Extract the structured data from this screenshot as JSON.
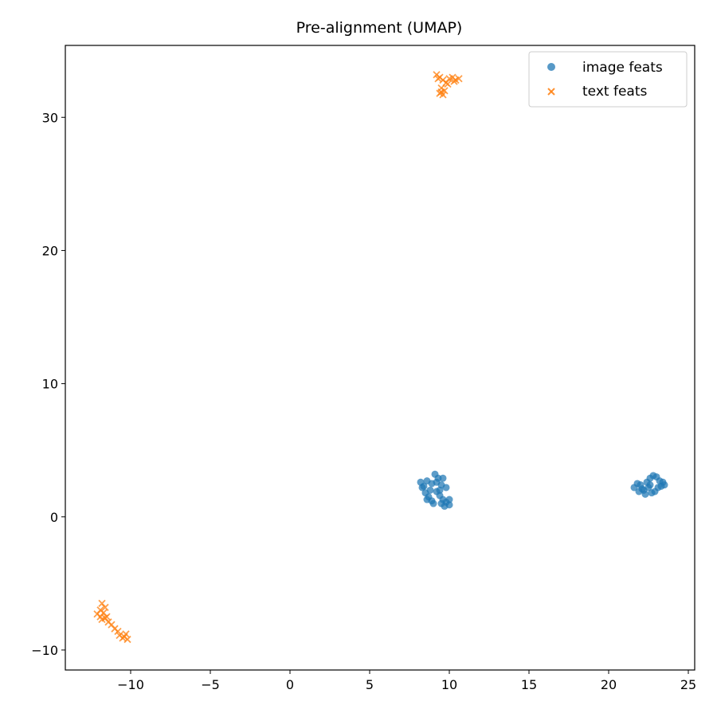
{
  "chart_data": {
    "type": "scatter",
    "title": "Pre-alignment (UMAP)",
    "xlabel": "",
    "ylabel": "",
    "xlim": [
      -14.1,
      25.4
    ],
    "ylim": [
      -11.5,
      35.4
    ],
    "x_ticks": [
      -10,
      -5,
      0,
      5,
      10,
      15,
      20,
      25
    ],
    "y_ticks": [
      -10,
      0,
      10,
      20,
      30
    ],
    "x_tick_labels": [
      "−10",
      "−5",
      "0",
      "5",
      "10",
      "15",
      "20",
      "25"
    ],
    "y_tick_labels": [
      "−10",
      "0",
      "10",
      "20",
      "30"
    ],
    "grid": false,
    "legend_position": "top-right",
    "series": [
      {
        "name": "image feats",
        "marker": "circle",
        "color": "#1f77b4",
        "points": [
          [
            8.2,
            2.6
          ],
          [
            8.4,
            2.3
          ],
          [
            8.6,
            2.7
          ],
          [
            8.9,
            2.5
          ],
          [
            9.1,
            3.2
          ],
          [
            9.3,
            2.9
          ],
          [
            9.6,
            2.9
          ],
          [
            9.5,
            2.4
          ],
          [
            9.8,
            2.2
          ],
          [
            8.5,
            1.8
          ],
          [
            8.7,
            1.5
          ],
          [
            8.9,
            1.2
          ],
          [
            9.2,
            1.9
          ],
          [
            9.4,
            1.6
          ],
          [
            9.6,
            1.3
          ],
          [
            9.8,
            1.1
          ],
          [
            10.0,
            0.9
          ],
          [
            9.7,
            0.8
          ],
          [
            9.0,
            1.0
          ],
          [
            8.6,
            1.3
          ],
          [
            9.2,
            2.6
          ],
          [
            8.3,
            2.2
          ],
          [
            9.4,
            2.0
          ],
          [
            10.0,
            1.3
          ],
          [
            8.8,
            2.0
          ],
          [
            9.5,
            1.0
          ],
          [
            21.6,
            2.2
          ],
          [
            21.8,
            2.5
          ],
          [
            22.0,
            2.4
          ],
          [
            22.2,
            2.0
          ],
          [
            22.3,
            1.7
          ],
          [
            22.5,
            2.2
          ],
          [
            22.6,
            2.9
          ],
          [
            22.8,
            3.1
          ],
          [
            23.0,
            3.0
          ],
          [
            23.2,
            2.7
          ],
          [
            23.4,
            2.6
          ],
          [
            23.5,
            2.4
          ],
          [
            23.1,
            2.2
          ],
          [
            22.9,
            1.9
          ],
          [
            22.7,
            1.8
          ],
          [
            22.4,
            2.6
          ],
          [
            21.9,
            1.9
          ],
          [
            23.3,
            2.3
          ],
          [
            22.1,
            2.1
          ],
          [
            22.6,
            2.4
          ]
        ]
      },
      {
        "name": "text feats",
        "marker": "x",
        "color": "#ff7f0e",
        "points": [
          [
            9.2,
            33.2
          ],
          [
            9.4,
            33.0
          ],
          [
            9.6,
            32.8
          ],
          [
            9.8,
            32.6
          ],
          [
            10.0,
            32.9
          ],
          [
            10.2,
            33.0
          ],
          [
            10.4,
            32.8
          ],
          [
            10.6,
            32.9
          ],
          [
            9.5,
            32.2
          ],
          [
            9.4,
            31.8
          ],
          [
            9.6,
            31.7
          ],
          [
            9.7,
            32.0
          ],
          [
            9.9,
            32.5
          ],
          [
            9.3,
            32.9
          ],
          [
            10.3,
            32.7
          ],
          [
            9.5,
            31.9
          ],
          [
            -11.8,
            -6.5
          ],
          [
            -11.6,
            -6.8
          ],
          [
            -11.9,
            -7.0
          ],
          [
            -12.1,
            -7.3
          ],
          [
            -11.7,
            -7.2
          ],
          [
            -11.5,
            -7.5
          ],
          [
            -11.8,
            -7.7
          ],
          [
            -11.4,
            -7.9
          ],
          [
            -11.2,
            -8.1
          ],
          [
            -11.0,
            -8.4
          ],
          [
            -10.8,
            -8.6
          ],
          [
            -10.7,
            -8.9
          ],
          [
            -10.5,
            -9.1
          ],
          [
            -10.3,
            -8.8
          ],
          [
            -10.2,
            -9.2
          ],
          [
            -10.4,
            -9.0
          ],
          [
            -11.6,
            -7.6
          ],
          [
            -11.9,
            -7.5
          ]
        ]
      }
    ]
  },
  "colors": {
    "image": "#1f77b4",
    "text": "#ff7f0e"
  }
}
